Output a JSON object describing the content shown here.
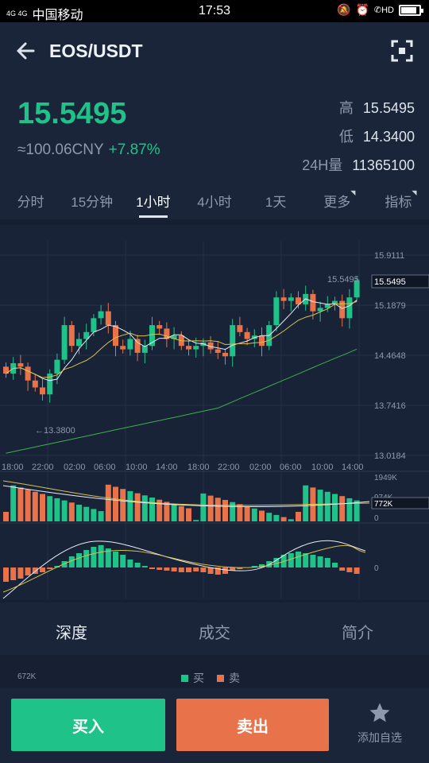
{
  "status": {
    "network": "4G 4G",
    "carrier": "中国移动",
    "time": "17:53",
    "hd": "HD"
  },
  "header": {
    "title": "EOS/USDT",
    "back_icon": "arrow-left-icon",
    "scan_icon": "fullscreen-icon"
  },
  "price": {
    "last": "15.5495",
    "cny": "≈100.06CNY",
    "change": "+7.87%"
  },
  "stats": [
    {
      "label": "高",
      "value": "15.5495"
    },
    {
      "label": "低",
      "value": "14.3400"
    },
    {
      "label": "24H量",
      "value": "11365100"
    }
  ],
  "tabs": [
    "分时",
    "15分钟",
    "1小时",
    "4小时",
    "1天",
    "更多",
    "指标"
  ],
  "chart": {
    "price_ticks": [
      "15.9111",
      "15.1879",
      "14.4648",
      "13.7416",
      "13.0184"
    ],
    "time_ticks": [
      "18:00",
      "22:00",
      "02:00",
      "06:00",
      "10:00",
      "14:00",
      "18:00",
      "22:00",
      "02:00",
      "06:00",
      "10:00",
      "14:00"
    ],
    "high_label": "15.5495",
    "low_label": "←13.3800",
    "current_tag": "15.5495",
    "vol_ticks": [
      "1949K",
      "974K",
      "0"
    ],
    "vol_tag": "772K",
    "macd_zero": "0"
  },
  "subtabs": [
    "深度",
    "成交",
    "简介"
  ],
  "depth": {
    "max_label": "672K",
    "buy": "买",
    "sell": "卖"
  },
  "actions": {
    "buy": "买入",
    "sell": "卖出",
    "favorite": "添加自选"
  },
  "colors": {
    "up": "#1fc289",
    "down": "#e8734a",
    "bg": "#172033"
  }
}
